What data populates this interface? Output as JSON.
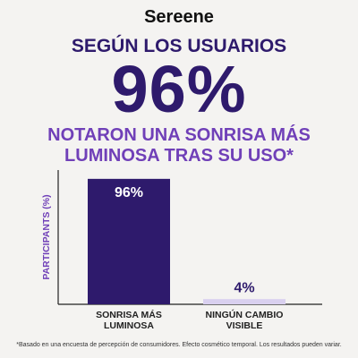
{
  "brand": "Sereene",
  "headline": {
    "top": "SEGÚN LOS USUARIOS",
    "big": "96%",
    "bottom": "NOTARON UNA SONRISA MÁS LUMINOSA TRAS SU USO*"
  },
  "chart_data": {
    "type": "bar",
    "ylabel": "PARTICIPANTS (%)",
    "categories": [
      "SONRISA MÁS LUMINOSA",
      "NINGÚN CAMBIO VISIBLE"
    ],
    "values": [
      96,
      4
    ],
    "value_labels": [
      "96%",
      "4%"
    ],
    "colors": [
      "#2e1a6c",
      "#d9d0ef"
    ],
    "ylim": [
      0,
      100
    ]
  },
  "footnote": "*Basado en una encuesta de percepción de consumidores. Efecto cosmético temporal. Los resultados pueden variar."
}
